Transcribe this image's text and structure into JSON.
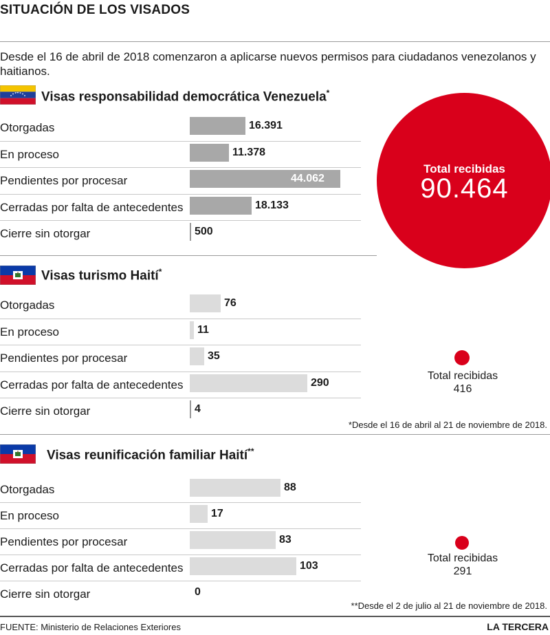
{
  "title": "SITUACIÓN DE LOS VISADOS",
  "intro": "Desde el 16 de abril de 2018 comenzaron a aplicarse nuevos permisos para ciudadanos venezolanos y haitianos.",
  "colors": {
    "venezuela_bar": "#a8a8a8",
    "haiti_bar": "#dcdcdc",
    "accent_red": "#d9001b"
  },
  "chart_data": [
    {
      "type": "bar",
      "title": "Visas responsabilidad democrática Venezuela",
      "title_mark": "*",
      "flag": "venezuela-flag-icon",
      "categories": [
        "Otorgadas",
        "En proceso",
        "Pendientes por procesar",
        "Cerradas por falta de antecedentes",
        "Cierre sin otorgar"
      ],
      "values": [
        16391,
        11378,
        44062,
        18133,
        500
      ],
      "value_labels": [
        "16.391",
        "11.378",
        "44.062",
        "18.133",
        "500"
      ],
      "total_label": "Total recibidas",
      "total_value": "90.464"
    },
    {
      "type": "bar",
      "title": "Visas turismo Haití",
      "title_mark": "*",
      "flag": "haiti-flag-icon",
      "categories": [
        "Otorgadas",
        "En proceso",
        "Pendientes por procesar",
        "Cerradas por falta de antecedentes",
        "Cierre sin otorgar"
      ],
      "values": [
        76,
        11,
        35,
        290,
        4
      ],
      "value_labels": [
        "76",
        "11",
        "35",
        "290",
        "4"
      ],
      "total_label": "Total recibidas",
      "total_value": "416",
      "note": "*Desde el 16 de abril al 21 de noviembre de 2018."
    },
    {
      "type": "bar",
      "title": "Visas reunificación familiar Haití",
      "title_mark": "**",
      "flag": "haiti-flag-icon",
      "categories": [
        "Otorgadas",
        "En proceso",
        "Pendientes por procesar",
        "Cerradas por falta de antecedentes",
        "Cierre sin otorgar"
      ],
      "values": [
        88,
        17,
        83,
        103,
        0
      ],
      "value_labels": [
        "88",
        "17",
        "83",
        "103",
        "0"
      ],
      "total_label": "Total recibidas",
      "total_value": "291",
      "note": "**Desde el 2 de julio al 21 de noviembre de 2018."
    }
  ],
  "footer": {
    "source": "FUENTE: Ministerio de Relaciones Exteriores",
    "brand": "LA TERCERA"
  }
}
